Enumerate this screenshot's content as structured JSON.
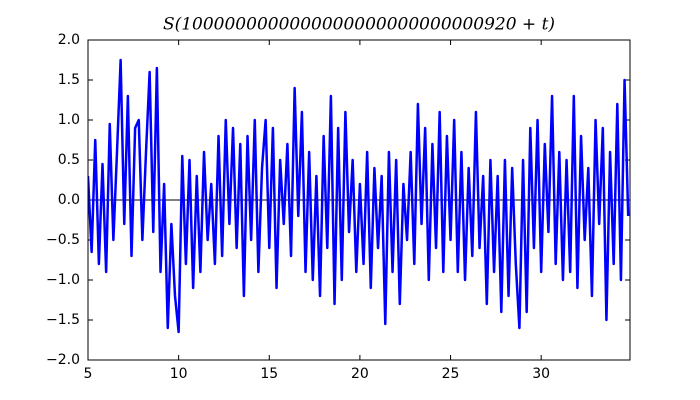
{
  "chart_data": {
    "type": "line",
    "title": "S(1000000000000000000000000000920 + t)",
    "x": [
      5.0,
      5.2,
      5.4,
      5.6,
      5.8,
      6.0,
      6.2,
      6.4,
      6.6,
      6.8,
      7.0,
      7.2,
      7.4,
      7.6,
      7.8,
      8.0,
      8.2,
      8.4,
      8.6,
      8.8,
      9.0,
      9.2,
      9.4,
      9.6,
      9.8,
      10.0,
      10.2,
      10.4,
      10.6,
      10.8,
      11.0,
      11.2,
      11.4,
      11.6,
      11.8,
      12.0,
      12.2,
      12.4,
      12.6,
      12.8,
      13.0,
      13.2,
      13.4,
      13.6,
      13.8,
      14.0,
      14.2,
      14.4,
      14.6,
      14.8,
      15.0,
      15.2,
      15.4,
      15.6,
      15.8,
      16.0,
      16.2,
      16.4,
      16.6,
      16.8,
      17.0,
      17.2,
      17.4,
      17.6,
      17.8,
      18.0,
      18.2,
      18.4,
      18.6,
      18.8,
      19.0,
      19.2,
      19.4,
      19.6,
      19.8,
      20.0,
      20.2,
      20.4,
      20.6,
      20.8,
      21.0,
      21.2,
      21.4,
      21.6,
      21.8,
      22.0,
      22.2,
      22.4,
      22.6,
      22.8,
      23.0,
      23.2,
      23.4,
      23.6,
      23.8,
      24.0,
      24.2,
      24.4,
      24.6,
      24.8,
      25.0,
      25.2,
      25.4,
      25.6,
      25.8,
      26.0,
      26.2,
      26.4,
      26.6,
      26.8,
      27.0,
      27.2,
      27.4,
      27.6,
      27.8,
      28.0,
      28.2,
      28.4,
      28.6,
      28.8,
      29.0,
      29.2,
      29.4,
      29.6,
      29.8,
      30.0,
      30.2,
      30.4,
      30.6,
      30.8,
      31.0,
      31.2,
      31.4,
      31.6,
      31.8,
      32.0,
      32.2,
      32.4,
      32.6,
      32.8,
      33.0,
      33.2,
      33.4,
      33.6,
      33.8,
      34.0,
      34.2,
      34.4,
      34.6,
      34.8
    ],
    "series": [
      {
        "color": "#0000ff",
        "values": [
          0.3,
          -0.65,
          0.75,
          -0.8,
          0.45,
          -0.9,
          0.95,
          -0.5,
          0.6,
          1.75,
          -0.3,
          1.3,
          -0.7,
          0.9,
          1.0,
          -0.5,
          0.6,
          1.6,
          -0.4,
          1.65,
          -0.9,
          0.2,
          -1.6,
          -0.3,
          -1.2,
          -1.65,
          0.55,
          -0.8,
          0.5,
          -1.1,
          0.3,
          -0.9,
          0.6,
          -0.5,
          0.2,
          -0.8,
          0.8,
          -0.7,
          1.0,
          -0.3,
          0.9,
          -0.6,
          0.7,
          -1.2,
          0.8,
          -0.5,
          1.0,
          -0.9,
          0.4,
          1.0,
          -0.6,
          0.9,
          -1.1,
          0.5,
          -0.3,
          0.7,
          -0.7,
          1.4,
          -0.2,
          1.1,
          -0.9,
          0.6,
          -1.0,
          0.3,
          -1.2,
          0.8,
          -0.6,
          1.3,
          -1.3,
          0.9,
          -1.0,
          1.1,
          -0.4,
          0.5,
          -0.9,
          0.2,
          -0.8,
          0.6,
          -1.1,
          0.4,
          -0.6,
          0.3,
          -1.55,
          0.6,
          -0.9,
          0.5,
          -1.3,
          0.2,
          -0.5,
          0.6,
          -0.8,
          1.2,
          -0.3,
          0.9,
          -1.0,
          0.7,
          -0.6,
          1.1,
          -0.9,
          0.8,
          -0.5,
          1.0,
          -0.9,
          0.6,
          -1.0,
          0.4,
          -0.7,
          1.1,
          -0.6,
          0.3,
          -1.3,
          0.5,
          -0.9,
          0.3,
          -1.4,
          0.5,
          -1.2,
          0.4,
          -0.8,
          -1.6,
          0.5,
          -1.4,
          0.9,
          -0.6,
          1.0,
          -0.9,
          0.7,
          -0.4,
          1.3,
          -0.8,
          0.6,
          -1.0,
          0.5,
          -0.9,
          1.3,
          -1.1,
          0.8,
          -0.5,
          0.4,
          -1.2,
          1.0,
          -0.3,
          0.9,
          -1.5,
          0.6,
          -0.8,
          1.2,
          -1.0,
          1.5,
          -0.2
        ]
      }
    ],
    "xlim": [
      5,
      34.9
    ],
    "xticks": [
      5,
      10,
      15,
      20,
      25,
      30
    ],
    "ylim": [
      -2,
      2
    ],
    "yticks": [
      {
        "value": -2,
        "label": "−2.0"
      },
      {
        "value": -1.5,
        "label": "−1.5"
      },
      {
        "value": -1,
        "label": "−1.0"
      },
      {
        "value": -0.5,
        "label": "−0.5"
      },
      {
        "value": 0,
        "label": "0.0"
      },
      {
        "value": 0.5,
        "label": "0.5"
      },
      {
        "value": 1,
        "label": "1.0"
      },
      {
        "value": 1.5,
        "label": "1.5"
      },
      {
        "value": 2,
        "label": "2.0"
      }
    ],
    "hlines": [
      0
    ]
  }
}
